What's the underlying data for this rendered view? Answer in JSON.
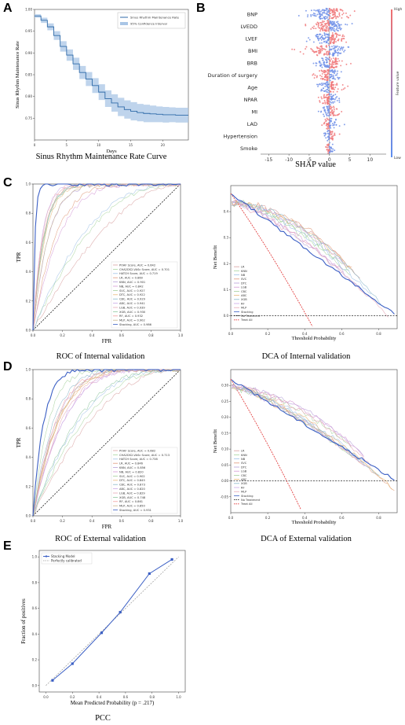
{
  "letters": {
    "a": "A",
    "b": "B",
    "c": "C",
    "d": "D",
    "e": "E"
  },
  "captions": {
    "a": "Sinus Rhythm Maintenance Rate Curve",
    "b": "SHAP value",
    "c_roc": "ROC of Internal validation",
    "c_dca": "DCA of Internal validation",
    "d_roc": "ROC of External validation",
    "d_dca": "DCA of External validation",
    "e": "PCC"
  },
  "colors": {
    "blue": "#3b5fc4",
    "red": "#e03030",
    "gray": "#999999"
  },
  "chart_data": [
    {
      "id": "A",
      "type": "line",
      "ylabel": "Sinus Rhythm Maintenance Rate",
      "xlabel": "Days",
      "xlim": [
        0,
        24
      ],
      "ylim": [
        0.7,
        1.0
      ],
      "xticks": [
        "0",
        "5",
        "10",
        "15",
        "20"
      ],
      "yticks": [
        "0.75",
        "0.80",
        "0.85",
        "0.90",
        "0.95",
        "1.00"
      ],
      "legend": [
        "Sinus Rhythm Maintenance Rate",
        "95% Confidence Interval"
      ],
      "x": [
        0,
        1,
        2,
        3,
        4,
        5,
        6,
        7,
        8,
        9,
        10,
        11,
        12,
        13,
        14,
        15,
        16,
        17,
        18,
        19,
        20,
        21,
        22,
        23,
        24
      ],
      "values": [
        0.985,
        0.975,
        0.96,
        0.94,
        0.915,
        0.895,
        0.875,
        0.855,
        0.84,
        0.825,
        0.81,
        0.795,
        0.785,
        0.776,
        0.77,
        0.766,
        0.763,
        0.761,
        0.76,
        0.759,
        0.758,
        0.758,
        0.757,
        0.757,
        0.757
      ],
      "ci_halfwidth": [
        0.004,
        0.006,
        0.008,
        0.01,
        0.012,
        0.013,
        0.014,
        0.015,
        0.016,
        0.017,
        0.018,
        0.019,
        0.02,
        0.021,
        0.021,
        0.021,
        0.02,
        0.02,
        0.019,
        0.018,
        0.018,
        0.017,
        0.017,
        0.017,
        0.017
      ]
    },
    {
      "id": "B",
      "type": "scatter",
      "subtype": "shap_beeswarm",
      "xlabel": "SHAP value",
      "xlim": [
        -17,
        14
      ],
      "xticks": [
        "-15",
        "-10",
        "-5",
        "0",
        "5",
        "10"
      ],
      "colorbar_label": "Feature value",
      "colorbar_high": "High",
      "colorbar_low": "Low",
      "features": [
        "BNP",
        "LVEDD",
        "LVEF",
        "BMI",
        "BRB",
        "Duration of surgery",
        "Age",
        "NPAR",
        "MI",
        "LAD",
        "Hypertension",
        "Smoke"
      ],
      "spread": [
        [
          -13,
          11
        ],
        [
          -10,
          9
        ],
        [
          -12,
          10
        ],
        [
          -16,
          10
        ],
        [
          -8,
          8
        ],
        [
          -9,
          7
        ],
        [
          -7,
          8
        ],
        [
          -6,
          7
        ],
        [
          -6,
          6
        ],
        [
          -5,
          6
        ],
        [
          -3,
          4
        ],
        [
          -2,
          3
        ]
      ]
    },
    {
      "id": "C-ROC",
      "type": "line",
      "xlabel": "FPR",
      "ylabel": "TPR",
      "xlim": [
        0,
        1
      ],
      "ylim": [
        0,
        1
      ],
      "ticks": [
        "0.0",
        "0.2",
        "0.4",
        "0.6",
        "0.8",
        "1.0"
      ],
      "legend": [
        "POAF Score, AUC = 0.642",
        "CHA2DS2-VASc Score, AUC = 0.701",
        "HATCH Score, AUC = 0.719",
        "LR, AUC = 0.860",
        "KNN, AUC = 0.901",
        "NB, AUC = 0.842",
        "SVC, AUC = 0.927",
        "DTC, AUC = 0.922",
        "CBC, AUC = 0.929",
        "ABC, AUC = 0.941",
        "LGB, AUC = 0.939",
        "XGB, AUC = 0.930",
        "RF, AUC = 0.932",
        "MLP, AUC = 0.902",
        "Stacking, AUC = 0.986"
      ],
      "auc": [
        0.642,
        0.701,
        0.719,
        0.86,
        0.901,
        0.842,
        0.927,
        0.922,
        0.929,
        0.941,
        0.939,
        0.93,
        0.932,
        0.902,
        0.986
      ]
    },
    {
      "id": "C-DCA",
      "type": "line",
      "xlabel": "Threshold Probability",
      "ylabel": "Net Benefit",
      "xlim": [
        0,
        0.9
      ],
      "ylim": [
        -0.05,
        0.5
      ],
      "xticks": [
        "0.0",
        "0.2",
        "0.4",
        "0.6",
        "0.8"
      ],
      "yticks": [
        "0.0",
        "0.1",
        "0.2",
        "0.3",
        "0.4"
      ],
      "legend": [
        "LR",
        "KNN",
        "NB",
        "SVC",
        "DTC",
        "LGB",
        "CBC",
        "ABC",
        "XGB",
        "RF",
        "MLP",
        "Stacking",
        "No Treatment",
        "Treat All"
      ]
    },
    {
      "id": "D-ROC",
      "type": "line",
      "xlabel": "FPR",
      "ylabel": "TPR",
      "xlim": [
        0,
        1
      ],
      "ylim": [
        0,
        1
      ],
      "ticks": [
        "0.0",
        "0.2",
        "0.4",
        "0.6",
        "0.8",
        "1.0"
      ],
      "legend": [
        "POAF Score, AUC = 0.682",
        "CHA2DS2-VASc Score, AUC = 0.713",
        "HATCH Score, AUC = 0.738",
        "LR, AUC = 0.846",
        "KNN, AUC = 0.856",
        "NB, AUC = 0.820",
        "SVC, AUC = 0.902",
        "DTC, AUC = 0.845",
        "CBC, AUC = 0.873",
        "ABC, AUC = 0.820",
        "LGB, AUC = 0.829",
        "XGB, AUC = 0.748",
        "RF, AUC = 0.861",
        "MLP, AUC = 0.850",
        "Stacking, AUC = 0.931"
      ],
      "auc": [
        0.682,
        0.713,
        0.738,
        0.846,
        0.856,
        0.82,
        0.902,
        0.845,
        0.873,
        0.82,
        0.829,
        0.748,
        0.861,
        0.85,
        0.931
      ]
    },
    {
      "id": "D-DCA",
      "type": "line",
      "xlabel": "Threshold Probability",
      "ylabel": "Net Benefit",
      "xlim": [
        0,
        0.9
      ],
      "ylim": [
        -0.1,
        0.35
      ],
      "xticks": [
        "0.0",
        "0.2",
        "0.4",
        "0.6",
        "0.8"
      ],
      "yticks": [
        "-0.05",
        "0.00",
        "0.05",
        "0.10",
        "0.15",
        "0.20",
        "0.25",
        "0.30"
      ],
      "legend": [
        "LR",
        "KNN",
        "NB",
        "SVC",
        "DTC",
        "LGB",
        "CBC",
        "ABC",
        "XGB",
        "RF",
        "MLP",
        "Stacking",
        "No Treatment",
        "Treat All"
      ]
    },
    {
      "id": "E",
      "type": "line",
      "xlabel": "Mean Predicted Probability (p = .217)",
      "ylabel": "Fraction of positives",
      "xlim": [
        0,
        1
      ],
      "ylim": [
        0,
        1
      ],
      "ticks": [
        "0.0",
        "0.2",
        "0.4",
        "0.6",
        "0.8",
        "1.0"
      ],
      "legend": [
        "Stacking Model",
        "Perfectly calibrated"
      ],
      "series": [
        {
          "name": "Stacking Model",
          "x": [
            0.05,
            0.2,
            0.42,
            0.56,
            0.78,
            0.95
          ],
          "y": [
            0.04,
            0.17,
            0.41,
            0.57,
            0.87,
            0.98
          ]
        }
      ]
    }
  ]
}
